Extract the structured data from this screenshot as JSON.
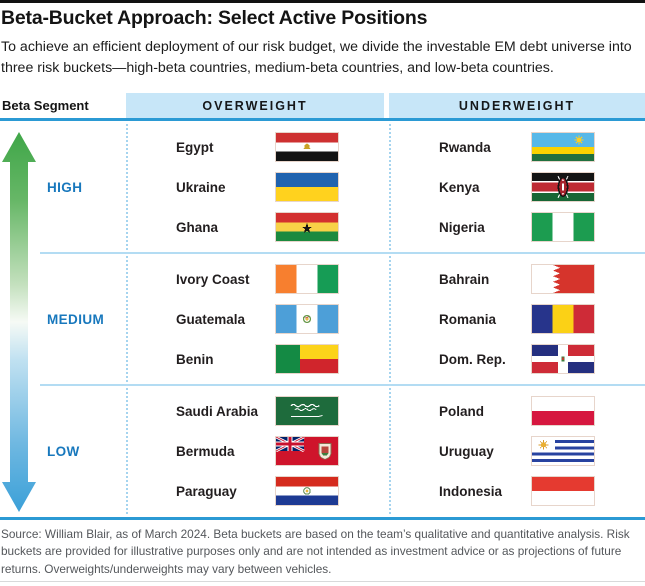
{
  "page": {
    "title": "Beta-Bucket Approach: Select Active Positions",
    "subtitle": "To achieve an efficient deployment of our risk budget, we divide the investable EM debt universe into three risk buckets—high-beta countries, medium-beta countries, and low-beta countries.",
    "footer": "Source: William Blair, as of March 2024. Beta buckets are based on the team’s qualitative and quantitative analysis. Risk buckets are provided for illustrative purposes only and are not intended as investment advice or as projections of future returns. Overweights/underweights may vary between vehicles."
  },
  "table": {
    "beta_segment_label": "Beta Segment",
    "columns": [
      {
        "key": "overweight",
        "label": "OVERWEIGHT"
      },
      {
        "key": "underweight",
        "label": "UNDERWEIGHT"
      }
    ],
    "segments": [
      {
        "label": "HIGH",
        "overweight": [
          {
            "country": "Egypt",
            "flag": "egypt"
          },
          {
            "country": "Ukraine",
            "flag": "ukraine"
          },
          {
            "country": "Ghana",
            "flag": "ghana"
          }
        ],
        "underweight": [
          {
            "country": "Rwanda",
            "flag": "rwanda"
          },
          {
            "country": "Kenya",
            "flag": "kenya"
          },
          {
            "country": "Nigeria",
            "flag": "nigeria"
          }
        ]
      },
      {
        "label": "MEDIUM",
        "overweight": [
          {
            "country": "Ivory Coast",
            "flag": "ivory-coast"
          },
          {
            "country": "Guatemala",
            "flag": "guatemala"
          },
          {
            "country": "Benin",
            "flag": "benin"
          }
        ],
        "underweight": [
          {
            "country": "Bahrain",
            "flag": "bahrain"
          },
          {
            "country": "Romania",
            "flag": "romania"
          },
          {
            "country": "Dom. Rep.",
            "flag": "dom-rep"
          }
        ]
      },
      {
        "label": "LOW",
        "overweight": [
          {
            "country": "Saudi Arabia",
            "flag": "saudi-arabia"
          },
          {
            "country": "Bermuda",
            "flag": "bermuda"
          },
          {
            "country": "Paraguay",
            "flag": "paraguay"
          }
        ],
        "underweight": [
          {
            "country": "Poland",
            "flag": "poland"
          },
          {
            "country": "Uruguay",
            "flag": "uruguay"
          },
          {
            "country": "Indonesia",
            "flag": "indonesia"
          }
        ]
      }
    ]
  },
  "icons": {
    "beta_arrow": "vertical-double-headed-arrow-green-high-to-blue-low"
  },
  "colors": {
    "header_fill": "#c7e6f8",
    "rule_blue": "#2b9ad4",
    "segment_label_blue": "#1878bd",
    "divider_blue": "#b3dcf3",
    "arrow_green": "#3fa648",
    "arrow_blue": "#3ba0d8",
    "footer_gray": "#54575b",
    "top_bar_black": "#111111"
  },
  "chart_data": {
    "type": "table",
    "title": "Beta-Bucket Approach: Select Active Positions",
    "axis_annotation": "Beta Segment arrow from HIGH (green, top) to LOW (blue, bottom)",
    "columns": [
      "Beta Segment",
      "Overweight",
      "Underweight"
    ],
    "rows": [
      [
        "High",
        "Egypt",
        "Rwanda"
      ],
      [
        "High",
        "Ukraine",
        "Kenya"
      ],
      [
        "High",
        "Ghana",
        "Nigeria"
      ],
      [
        "Medium",
        "Ivory Coast",
        "Bahrain"
      ],
      [
        "Medium",
        "Guatemala",
        "Romania"
      ],
      [
        "Medium",
        "Benin",
        "Dom. Rep."
      ],
      [
        "Low",
        "Saudi Arabia",
        "Poland"
      ],
      [
        "Low",
        "Bermuda",
        "Uruguay"
      ],
      [
        "Low",
        "Paraguay",
        "Indonesia"
      ]
    ]
  }
}
